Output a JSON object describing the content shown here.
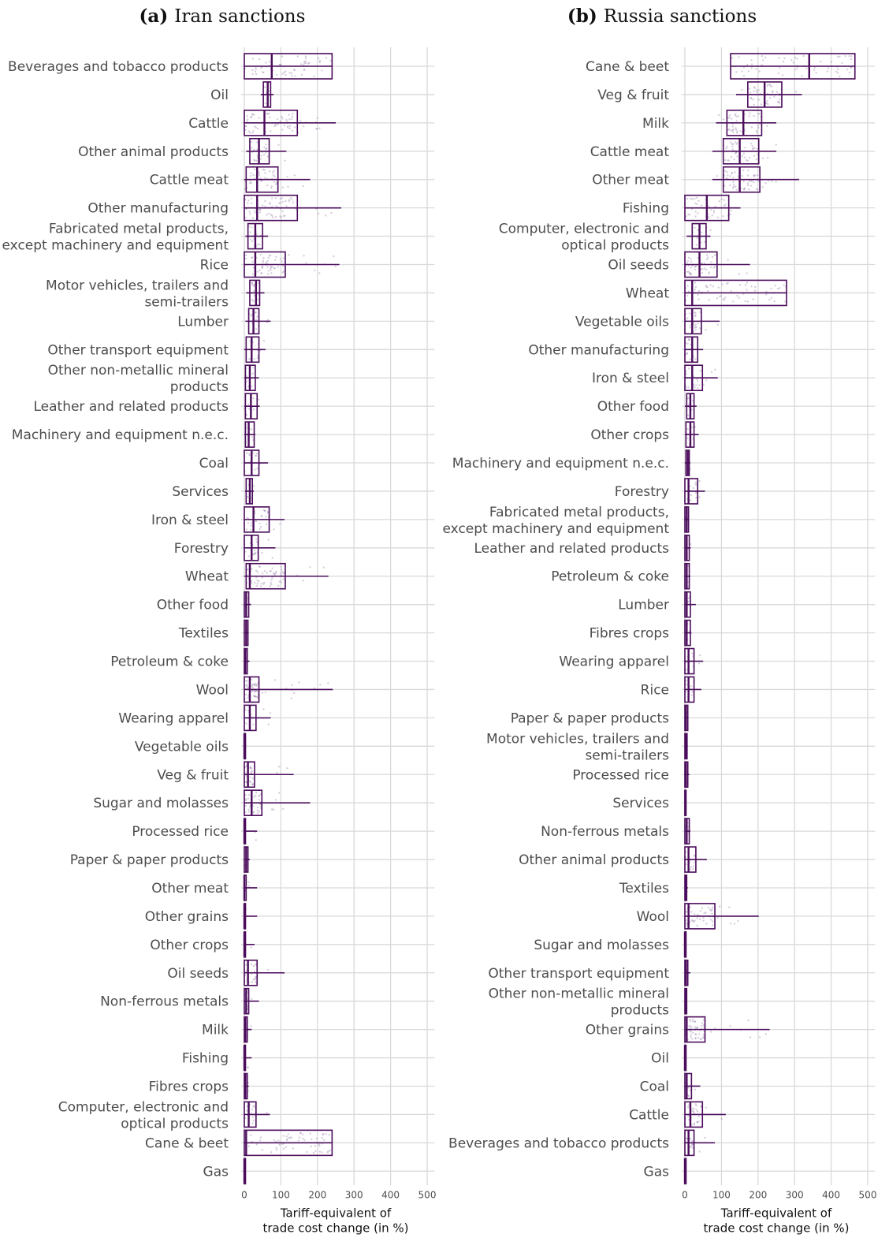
{
  "chart_data": [
    {
      "type": "boxplot",
      "panel_tag": "(a)",
      "title": "Iran sanctions",
      "xlabel": [
        "Tariff-equivalent of",
        "trade cost change (in %)"
      ],
      "xlim": [
        0,
        520
      ],
      "xticks": [
        0,
        100,
        200,
        300,
        400,
        500
      ],
      "grid": true,
      "color": "#4b0c5c",
      "categories": [
        {
          "label": [
            "Beverages and tobacco products"
          ],
          "box": [
            0,
            75,
            240
          ],
          "whisker": [
            0,
            240
          ]
        },
        {
          "label": [
            "Oil"
          ],
          "box": [
            52,
            64,
            72
          ],
          "whisker": [
            45,
            80
          ]
        },
        {
          "label": [
            "Cattle"
          ],
          "box": [
            0,
            55,
            145
          ],
          "whisker": [
            0,
            250
          ]
        },
        {
          "label": [
            "Other animal products"
          ],
          "box": [
            15,
            40,
            68
          ],
          "whisker": [
            5,
            115
          ]
        },
        {
          "label": [
            "Cattle meat"
          ],
          "box": [
            5,
            35,
            92
          ],
          "whisker": [
            0,
            180
          ]
        },
        {
          "label": [
            "Other manufacturing"
          ],
          "box": [
            0,
            35,
            145
          ],
          "whisker": [
            0,
            265
          ]
        },
        {
          "label": [
            "Fabricated metal products,",
            "except machinery and equipment"
          ],
          "box": [
            10,
            30,
            50
          ],
          "whisker": [
            3,
            65
          ]
        },
        {
          "label": [
            "Rice"
          ],
          "box": [
            0,
            30,
            112
          ],
          "whisker": [
            0,
            260
          ]
        },
        {
          "label": [
            "Motor vehicles, trailers and",
            "semi-trailers"
          ],
          "box": [
            15,
            32,
            42
          ],
          "whisker": [
            5,
            55
          ]
        },
        {
          "label": [
            "Lumber"
          ],
          "box": [
            12,
            25,
            40
          ],
          "whisker": [
            3,
            72
          ]
        },
        {
          "label": [
            "Other transport equipment"
          ],
          "box": [
            5,
            20,
            40
          ],
          "whisker": [
            0,
            58
          ]
        },
        {
          "label": [
            "Other non-metallic mineral",
            "products"
          ],
          "box": [
            3,
            15,
            30
          ],
          "whisker": [
            0,
            40
          ]
        },
        {
          "label": [
            "Leather and related products"
          ],
          "box": [
            3,
            18,
            35
          ],
          "whisker": [
            0,
            42
          ]
        },
        {
          "label": [
            "Machinery and equipment n.e.c."
          ],
          "box": [
            3,
            12,
            27
          ],
          "whisker": [
            0,
            30
          ]
        },
        {
          "label": [
            "Coal"
          ],
          "box": [
            0,
            20,
            40
          ],
          "whisker": [
            0,
            65
          ]
        },
        {
          "label": [
            "Services"
          ],
          "box": [
            5,
            15,
            22
          ],
          "whisker": [
            2,
            26
          ]
        },
        {
          "label": [
            "Iron & steel"
          ],
          "box": [
            0,
            25,
            68
          ],
          "whisker": [
            0,
            110
          ]
        },
        {
          "label": [
            "Forestry"
          ],
          "box": [
            0,
            20,
            38
          ],
          "whisker": [
            0,
            85
          ]
        },
        {
          "label": [
            "Wheat"
          ],
          "box": [
            5,
            15,
            112
          ],
          "whisker": [
            0,
            230
          ]
        },
        {
          "label": [
            "Other food"
          ],
          "box": [
            0,
            5,
            12
          ],
          "whisker": [
            0,
            18
          ]
        },
        {
          "label": [
            "Textiles"
          ],
          "box": [
            0,
            5,
            10
          ],
          "whisker": [
            0,
            12
          ]
        },
        {
          "label": [
            "Petroleum & coke"
          ],
          "box": [
            0,
            3,
            8
          ],
          "whisker": [
            0,
            14
          ]
        },
        {
          "label": [
            "Wool"
          ],
          "box": [
            0,
            15,
            40
          ],
          "whisker": [
            0,
            242
          ]
        },
        {
          "label": [
            "Wearing apparel"
          ],
          "box": [
            0,
            15,
            32
          ],
          "whisker": [
            0,
            72
          ]
        },
        {
          "label": [
            "Vegetable oils"
          ],
          "box": [
            0,
            0,
            3
          ],
          "whisker": [
            0,
            5
          ]
        },
        {
          "label": [
            "Veg & fruit"
          ],
          "box": [
            0,
            10,
            28
          ],
          "whisker": [
            0,
            135
          ]
        },
        {
          "label": [
            "Sugar and molasses"
          ],
          "box": [
            0,
            20,
            48
          ],
          "whisker": [
            0,
            180
          ]
        },
        {
          "label": [
            "Processed rice"
          ],
          "box": [
            0,
            0,
            3
          ],
          "whisker": [
            0,
            35
          ]
        },
        {
          "label": [
            "Paper & paper products"
          ],
          "box": [
            0,
            5,
            10
          ],
          "whisker": [
            0,
            15
          ]
        },
        {
          "label": [
            "Other meat"
          ],
          "box": [
            0,
            0,
            5
          ],
          "whisker": [
            0,
            35
          ]
        },
        {
          "label": [
            "Other grains"
          ],
          "box": [
            0,
            0,
            3
          ],
          "whisker": [
            0,
            35
          ]
        },
        {
          "label": [
            "Other crops"
          ],
          "box": [
            0,
            0,
            3
          ],
          "whisker": [
            0,
            28
          ]
        },
        {
          "label": [
            "Oil seeds"
          ],
          "box": [
            0,
            10,
            35
          ],
          "whisker": [
            0,
            110
          ]
        },
        {
          "label": [
            "Non-ferrous metals"
          ],
          "box": [
            0,
            5,
            12
          ],
          "whisker": [
            0,
            40
          ]
        },
        {
          "label": [
            "Milk"
          ],
          "box": [
            0,
            3,
            8
          ],
          "whisker": [
            0,
            20
          ]
        },
        {
          "label": [
            "Fishing"
          ],
          "box": [
            0,
            0,
            3
          ],
          "whisker": [
            0,
            20
          ]
        },
        {
          "label": [
            "Fibres crops"
          ],
          "box": [
            0,
            3,
            8
          ],
          "whisker": [
            0,
            12
          ]
        },
        {
          "label": [
            "Computer, electronic and",
            "optical products"
          ],
          "box": [
            0,
            12,
            32
          ],
          "whisker": [
            0,
            70
          ]
        },
        {
          "label": [
            "Cane & beet"
          ],
          "box": [
            0,
            5,
            240
          ],
          "whisker": [
            0,
            240
          ]
        },
        {
          "label": [
            "Gas"
          ],
          "box": [
            0,
            0,
            2
          ],
          "whisker": [
            0,
            2
          ]
        }
      ]
    },
    {
      "type": "boxplot",
      "panel_tag": "(b)",
      "title": "Russia sanctions",
      "xlabel": [
        "Tariff-equivalent of",
        "trade cost change (in %)"
      ],
      "xlim": [
        0,
        520
      ],
      "xticks": [
        0,
        100,
        200,
        300,
        400,
        500
      ],
      "grid": true,
      "color": "#4b0c5c",
      "categories": [
        {
          "label": [
            "Cane & beet"
          ],
          "box": [
            125,
            340,
            465
          ],
          "whisker": [
            125,
            465
          ]
        },
        {
          "label": [
            "Veg & fruit"
          ],
          "box": [
            172,
            218,
            265
          ],
          "whisker": [
            140,
            320
          ]
        },
        {
          "label": [
            "Milk"
          ],
          "box": [
            115,
            160,
            210
          ],
          "whisker": [
            85,
            250
          ]
        },
        {
          "label": [
            "Cattle meat"
          ],
          "box": [
            105,
            150,
            202
          ],
          "whisker": [
            75,
            250
          ]
        },
        {
          "label": [
            "Other meat"
          ],
          "box": [
            105,
            150,
            205
          ],
          "whisker": [
            75,
            312
          ]
        },
        {
          "label": [
            "Fishing"
          ],
          "box": [
            0,
            60,
            120
          ],
          "whisker": [
            0,
            152
          ]
        },
        {
          "label": [
            "Computer, electronic and",
            "optical products"
          ],
          "box": [
            20,
            40,
            58
          ],
          "whisker": [
            5,
            70
          ]
        },
        {
          "label": [
            "Oil seeds"
          ],
          "box": [
            0,
            40,
            88
          ],
          "whisker": [
            0,
            178
          ]
        },
        {
          "label": [
            "Wheat"
          ],
          "box": [
            0,
            20,
            278
          ],
          "whisker": [
            0,
            278
          ]
        },
        {
          "label": [
            "Vegetable oils"
          ],
          "box": [
            0,
            20,
            45
          ],
          "whisker": [
            0,
            95
          ]
        },
        {
          "label": [
            "Other manufacturing"
          ],
          "box": [
            0,
            20,
            35
          ],
          "whisker": [
            0,
            50
          ]
        },
        {
          "label": [
            "Iron & steel"
          ],
          "box": [
            0,
            20,
            48
          ],
          "whisker": [
            0,
            90
          ]
        },
        {
          "label": [
            "Other food"
          ],
          "box": [
            5,
            15,
            25
          ],
          "whisker": [
            0,
            32
          ]
        },
        {
          "label": [
            "Other crops"
          ],
          "box": [
            3,
            15,
            25
          ],
          "whisker": [
            0,
            38
          ]
        },
        {
          "label": [
            "Machinery and equipment n.e.c."
          ],
          "box": [
            3,
            8,
            12
          ],
          "whisker": [
            0,
            15
          ]
        },
        {
          "label": [
            "Forestry"
          ],
          "box": [
            0,
            10,
            35
          ],
          "whisker": [
            0,
            55
          ]
        },
        {
          "label": [
            "Fabricated metal products,",
            "except machinery and equipment"
          ],
          "box": [
            0,
            5,
            10
          ],
          "whisker": [
            0,
            12
          ]
        },
        {
          "label": [
            "Leather and related products"
          ],
          "box": [
            0,
            5,
            12
          ],
          "whisker": [
            0,
            16
          ]
        },
        {
          "label": [
            "Petroleum & coke"
          ],
          "box": [
            0,
            5,
            12
          ],
          "whisker": [
            0,
            15
          ]
        },
        {
          "label": [
            "Lumber"
          ],
          "box": [
            0,
            5,
            15
          ],
          "whisker": [
            0,
            30
          ]
        },
        {
          "label": [
            "Fibres crops"
          ],
          "box": [
            0,
            5,
            15
          ],
          "whisker": [
            0,
            18
          ]
        },
        {
          "label": [
            "Wearing apparel"
          ],
          "box": [
            0,
            10,
            25
          ],
          "whisker": [
            0,
            50
          ]
        },
        {
          "label": [
            "Rice"
          ],
          "box": [
            0,
            10,
            25
          ],
          "whisker": [
            0,
            45
          ]
        },
        {
          "label": [
            "Paper & paper products"
          ],
          "box": [
            0,
            3,
            8
          ],
          "whisker": [
            0,
            10
          ]
        },
        {
          "label": [
            "Motor vehicles, trailers and",
            "semi-trailers"
          ],
          "box": [
            0,
            2,
            6
          ],
          "whisker": [
            0,
            8
          ]
        },
        {
          "label": [
            "Processed rice"
          ],
          "box": [
            0,
            3,
            8
          ],
          "whisker": [
            0,
            12
          ]
        },
        {
          "label": [
            "Services"
          ],
          "box": [
            0,
            1,
            3
          ],
          "whisker": [
            0,
            4
          ]
        },
        {
          "label": [
            "Non-ferrous metals"
          ],
          "box": [
            0,
            5,
            12
          ],
          "whisker": [
            0,
            15
          ]
        },
        {
          "label": [
            "Other animal products"
          ],
          "box": [
            0,
            10,
            30
          ],
          "whisker": [
            0,
            60
          ]
        },
        {
          "label": [
            "Textiles"
          ],
          "box": [
            0,
            2,
            5
          ],
          "whisker": [
            0,
            8
          ]
        },
        {
          "label": [
            "Wool"
          ],
          "box": [
            0,
            10,
            82
          ],
          "whisker": [
            0,
            202
          ]
        },
        {
          "label": [
            "Sugar and molasses"
          ],
          "box": [
            0,
            0,
            2
          ],
          "whisker": [
            0,
            3
          ]
        },
        {
          "label": [
            "Other transport equipment"
          ],
          "box": [
            0,
            3,
            8
          ],
          "whisker": [
            0,
            15
          ]
        },
        {
          "label": [
            "Other non-metallic mineral",
            "products"
          ],
          "box": [
            0,
            2,
            5
          ],
          "whisker": [
            0,
            6
          ]
        },
        {
          "label": [
            "Other grains"
          ],
          "box": [
            0,
            5,
            55
          ],
          "whisker": [
            0,
            232
          ]
        },
        {
          "label": [
            "Oil"
          ],
          "box": [
            0,
            0,
            2
          ],
          "whisker": [
            0,
            3
          ]
        },
        {
          "label": [
            "Coal"
          ],
          "box": [
            0,
            5,
            18
          ],
          "whisker": [
            0,
            42
          ]
        },
        {
          "label": [
            "Cattle"
          ],
          "box": [
            0,
            15,
            48
          ],
          "whisker": [
            0,
            112
          ]
        },
        {
          "label": [
            "Beverages and tobacco products"
          ],
          "box": [
            0,
            10,
            25
          ],
          "whisker": [
            0,
            82
          ]
        },
        {
          "label": [
            "Gas"
          ],
          "box": [
            0,
            0,
            2
          ],
          "whisker": [
            0,
            2
          ]
        }
      ]
    }
  ]
}
